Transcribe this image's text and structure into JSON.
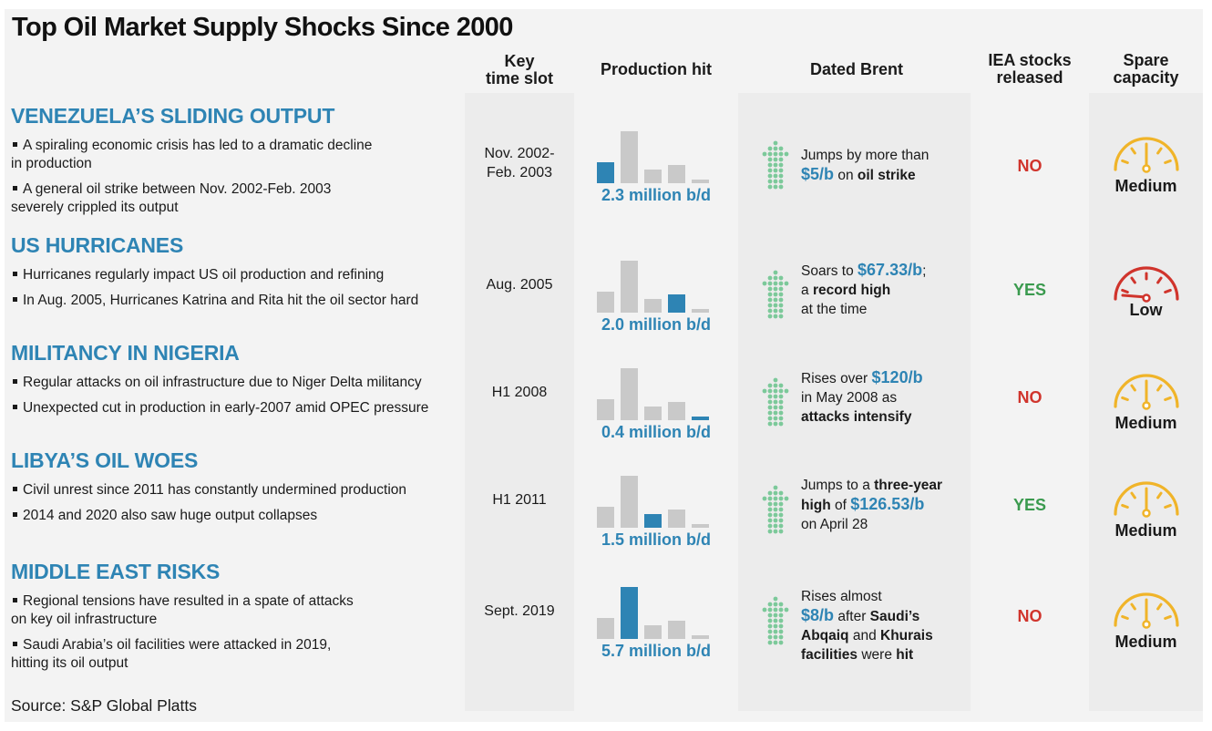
{
  "title": "Top Oil Market Supply Shocks Since 2000",
  "headers": {
    "time_slot": [
      "Key",
      "time slot"
    ],
    "production_hit": "Production hit",
    "dated_brent": "Dated Brent",
    "iea": [
      "IEA stocks",
      "released"
    ],
    "spare": [
      "Spare",
      "capacity"
    ]
  },
  "colors": {
    "accent": "#2e84b4",
    "bar_gray": "#c9c9c9",
    "arrow_green": "#7cc99a",
    "no_red": "#d0342c",
    "yes_green": "#3a9a4e",
    "gauge_yellow": "#f0b429",
    "gauge_red": "#d0342c"
  },
  "rows": [
    {
      "title": "VENEZUELA’S SLIDING OUTPUT",
      "bullets": [
        [
          "A spiraling economic crisis has led to a dramatic decline",
          "in production"
        ],
        [
          "A general oil strike between Nov. 2002-Feb. 2003",
          "severely crippled its output"
        ]
      ],
      "time_slot": [
        "Nov. 2002-",
        "Feb. 2003"
      ],
      "production_hit": "2.3 million b/d",
      "brent": [
        [
          {
            "t": "Jumps by more than"
          }
        ],
        [
          {
            "t": "$5/b",
            "s": "hl"
          },
          {
            "t": " on "
          },
          {
            "t": "oil strike",
            "s": "b"
          }
        ]
      ],
      "iea": "NO",
      "spare": "Medium",
      "gauge_icon": "gauge-medium-icon"
    },
    {
      "title": "US HURRICANES",
      "bullets": [
        [
          "Hurricanes regularly impact US oil production and refining"
        ],
        [
          "In Aug. 2005, Hurricanes Katrina and Rita hit the oil sector hard"
        ]
      ],
      "time_slot": [
        "Aug. 2005"
      ],
      "production_hit": "2.0 million b/d",
      "brent": [
        [
          {
            "t": "Soars to "
          },
          {
            "t": "$67.33/b",
            "s": "hl"
          },
          {
            "t": ";"
          }
        ],
        [
          {
            "t": "a "
          },
          {
            "t": "record high",
            "s": "b"
          }
        ],
        [
          {
            "t": "at the time"
          }
        ]
      ],
      "iea": "YES",
      "spare": "Low",
      "gauge_icon": "gauge-low-icon"
    },
    {
      "title": "MILITANCY IN NIGERIA",
      "bullets": [
        [
          "Regular attacks on oil infrastructure due to Niger Delta militancy"
        ],
        [
          "Unexpected cut in production in early-2007 amid OPEC pressure"
        ]
      ],
      "time_slot": [
        "H1 2008"
      ],
      "production_hit": "0.4 million b/d",
      "brent": [
        [
          {
            "t": "Rises over "
          },
          {
            "t": "$120/b",
            "s": "hl"
          }
        ],
        [
          {
            "t": "in May 2008 as"
          }
        ],
        [
          {
            "t": "attacks intensify",
            "s": "b"
          }
        ]
      ],
      "iea": "NO",
      "spare": "Medium",
      "gauge_icon": "gauge-medium-icon"
    },
    {
      "title": "LIBYA’S OIL WOES",
      "bullets": [
        [
          "Civil unrest since 2011 has constantly undermined production"
        ],
        [
          "2014 and 2020 also saw huge output collapses"
        ]
      ],
      "time_slot": [
        "H1 2011"
      ],
      "production_hit": "1.5 million b/d",
      "brent": [
        [
          {
            "t": "Jumps to a "
          },
          {
            "t": "three-year",
            "s": "b"
          }
        ],
        [
          {
            "t": "high",
            "s": "b"
          },
          {
            "t": " of "
          },
          {
            "t": "$126.53/b",
            "s": "hl"
          }
        ],
        [
          {
            "t": "on April 28"
          }
        ]
      ],
      "iea": "YES",
      "spare": "Medium",
      "gauge_icon": "gauge-medium-icon"
    },
    {
      "title": "MIDDLE EAST RISKS",
      "bullets": [
        [
          "Regional tensions have resulted in a spate of attacks",
          "on key oil infrastructure"
        ],
        [
          "Saudi Arabia’s oil facilities were attacked in 2019,",
          "hitting its oil output"
        ]
      ],
      "time_slot": [
        "Sept. 2019"
      ],
      "production_hit": "5.7 million b/d",
      "brent": [
        [
          {
            "t": "Rises almost"
          }
        ],
        [
          {
            "t": "$8/b",
            "s": "hl"
          },
          {
            "t": " after "
          },
          {
            "t": "Saudi’s",
            "s": "b"
          }
        ],
        [
          {
            "t": "Abqaiq",
            "s": "b"
          },
          {
            "t": " and "
          },
          {
            "t": "Khurais",
            "s": "b"
          }
        ],
        [
          {
            "t": "facilities",
            "s": "b"
          },
          {
            "t": " were "
          },
          {
            "t": "hit",
            "s": "b"
          }
        ]
      ],
      "iea": "NO",
      "spare": "Medium",
      "gauge_icon": "gauge-medium-icon"
    }
  ],
  "chart_data": {
    "type": "bar",
    "title": "Production hit",
    "categories": [
      "Venezuela's sliding output",
      "US hurricanes",
      "Militancy in Nigeria",
      "Libya's oil woes",
      "Middle East risks"
    ],
    "values": [
      2.3,
      2.0,
      0.4,
      1.5,
      5.7
    ],
    "unit": "million b/d",
    "xlabel": "",
    "ylabel": "million b/d",
    "ylim": [
      0,
      5.7
    ],
    "note": "Each row shows the five shocks as small bars; the row's own shock is highlighted in blue."
  },
  "source": "Source: S&P Global Platts"
}
